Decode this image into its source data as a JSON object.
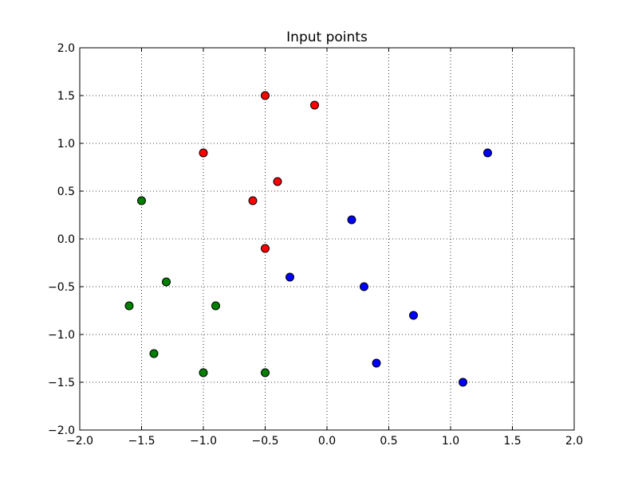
{
  "chart_data": {
    "type": "scatter",
    "title": "Input points",
    "xlabel": "",
    "ylabel": "",
    "xlim": [
      -2.0,
      2.0
    ],
    "ylim": [
      -2.0,
      2.0
    ],
    "x_ticks": [
      -2.0,
      -1.5,
      -1.0,
      -0.5,
      0.0,
      0.5,
      1.0,
      1.5,
      2.0
    ],
    "y_ticks": [
      -2.0,
      -1.5,
      -1.0,
      -0.5,
      0.0,
      0.5,
      1.0,
      1.5,
      2.0
    ],
    "x_tick_labels": [
      "−2.0",
      "−1.5",
      "−1.0",
      "−0.5",
      "0.0",
      "0.5",
      "1.0",
      "1.5",
      "2.0"
    ],
    "y_tick_labels": [
      "−2.0",
      "−1.5",
      "−1.0",
      "−0.5",
      "0.0",
      "0.5",
      "1.0",
      "1.5",
      "2.0"
    ],
    "grid": true,
    "legend": "none",
    "series": [
      {
        "color": "#ff0000",
        "points": [
          {
            "x": -0.5,
            "y": 1.5
          },
          {
            "x": -0.1,
            "y": 1.4
          },
          {
            "x": -1.0,
            "y": 0.9
          },
          {
            "x": -0.4,
            "y": 0.6
          },
          {
            "x": -0.6,
            "y": 0.4
          },
          {
            "x": -0.5,
            "y": -0.1
          }
        ]
      },
      {
        "color": "#0000ff",
        "points": [
          {
            "x": 1.3,
            "y": 0.9
          },
          {
            "x": 0.2,
            "y": 0.2
          },
          {
            "x": -0.3,
            "y": -0.4
          },
          {
            "x": 0.3,
            "y": -0.5
          },
          {
            "x": 0.7,
            "y": -0.8
          },
          {
            "x": 0.4,
            "y": -1.3
          },
          {
            "x": 1.1,
            "y": -1.5
          }
        ]
      },
      {
        "color": "#008000",
        "points": [
          {
            "x": -1.5,
            "y": 0.4
          },
          {
            "x": -1.3,
            "y": -0.45
          },
          {
            "x": -1.6,
            "y": -0.7
          },
          {
            "x": -0.9,
            "y": -0.7
          },
          {
            "x": -1.4,
            "y": -1.2
          },
          {
            "x": -1.0,
            "y": -1.4
          },
          {
            "x": -0.5,
            "y": -1.4
          }
        ]
      }
    ]
  }
}
